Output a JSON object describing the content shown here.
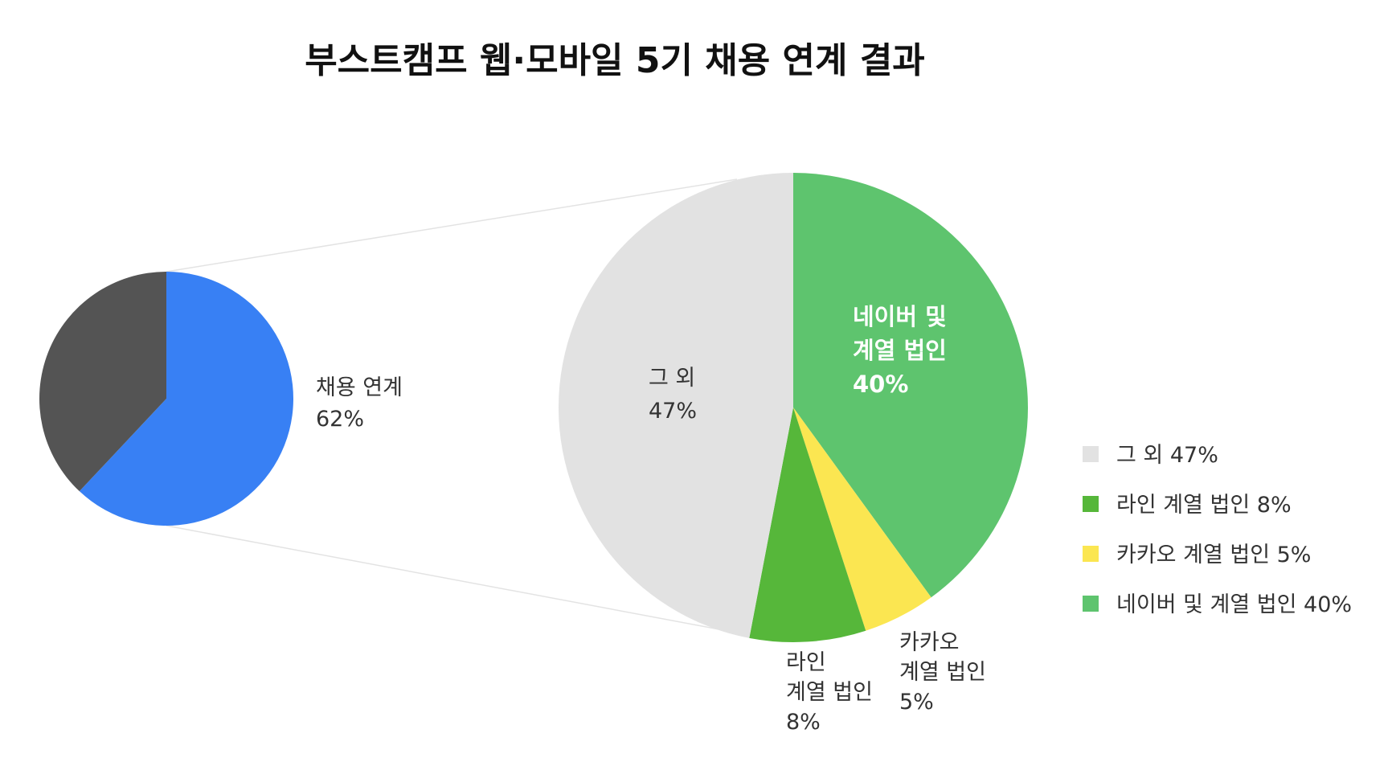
{
  "chart_data": [
    {
      "type": "pie",
      "title": "부스트캠프 웹·모바일 5기 채용 연계 결과",
      "slices": [
        {
          "label_lines": [
            "채용 연계",
            "62%"
          ],
          "value": 62,
          "color": "#3880F4"
        },
        {
          "label_lines": [],
          "value": 38,
          "color": "#545454"
        }
      ]
    },
    {
      "type": "pie",
      "slices": [
        {
          "label_lines": [
            "네이버 및",
            "계열 법인",
            "40%"
          ],
          "value": 40,
          "color": "#5EC46E",
          "legend": "네이버 및 계열 법인 40%"
        },
        {
          "label_lines": [
            "카카오",
            "계열 법인",
            "5%"
          ],
          "value": 5,
          "color": "#FBE651",
          "legend": "카카오 계열 법인 5%"
        },
        {
          "label_lines": [
            "라인",
            "계열 법인",
            "8%"
          ],
          "value": 8,
          "color": "#56B73A",
          "legend": "라인 계열 법인 8%"
        },
        {
          "label_lines": [
            "그 외",
            "47%"
          ],
          "value": 47,
          "color": "#E2E2E2",
          "legend": "그 외 47%"
        }
      ],
      "legend_order": [
        3,
        2,
        1,
        0
      ],
      "legend_position": "right"
    }
  ]
}
